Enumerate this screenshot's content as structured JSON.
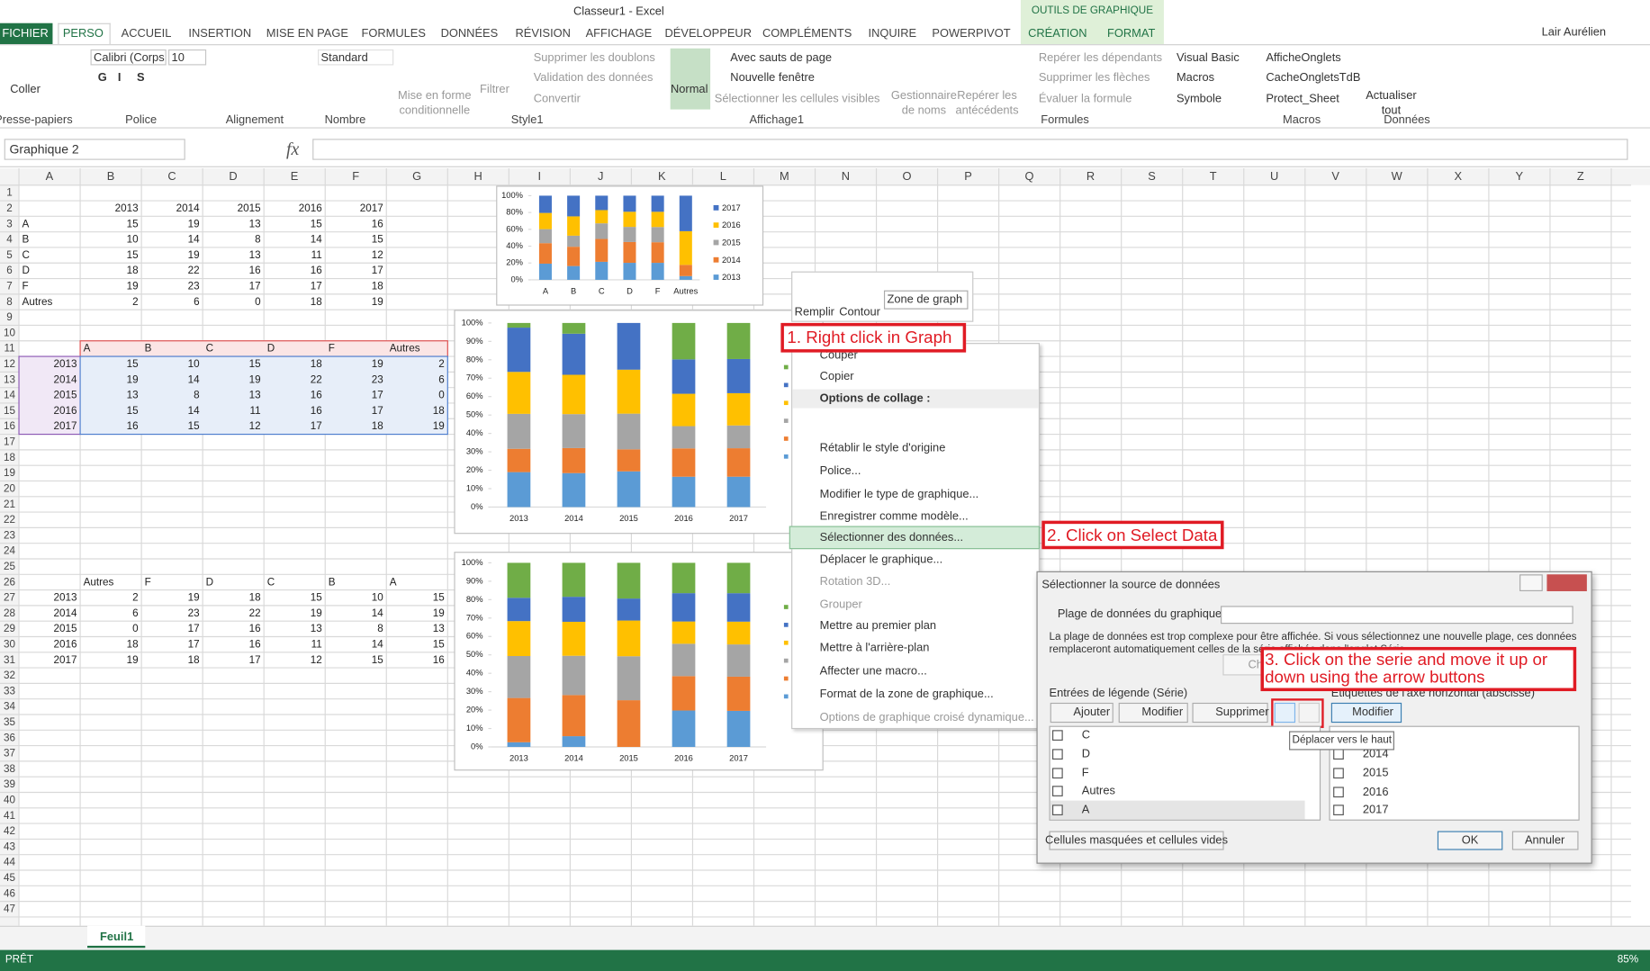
{
  "titlebar": {
    "title": "Classeur1 - Excel",
    "tools_tab": "OUTILS DE GRAPHIQUE",
    "user": "Lair Aurélien"
  },
  "tabs": [
    "FICHIER",
    "PERSO",
    "ACCUEIL",
    "INSERTION",
    "MISE EN PAGE",
    "FORMULES",
    "DONNÉES",
    "RÉVISION",
    "AFFICHAGE",
    "DÉVELOPPEUR",
    "COMPLÉMENTS",
    "INQUIRE",
    "POWERPIVOT",
    "CRÉATION",
    "FORMAT"
  ],
  "ribbon": {
    "groups": [
      {
        "name": "Presse-papiers",
        "items": [
          "Coller"
        ]
      },
      {
        "name": "Police",
        "items": [
          "Calibri (Corps",
          "10",
          "G",
          "I",
          "S"
        ]
      },
      {
        "name": "Alignement",
        "items": []
      },
      {
        "name": "Nombre",
        "items": [
          "Standard"
        ]
      },
      {
        "name": "Style1",
        "items": [
          "Mise en forme conditionnelle",
          "Filtrer",
          "Supprimer les doublons",
          "Validation des données",
          "Convertir"
        ]
      },
      {
        "name": "Affichage1",
        "items": [
          "Normal",
          "Avec sauts de page",
          "Nouvelle fenêtre",
          "Sélectionner les cellules visibles"
        ]
      },
      {
        "name": "Formules",
        "items": [
          "Gestionnaire de noms",
          "Repérer les antécédents",
          "Repérer les dépendants",
          "Supprimer les flèches",
          "Évaluer la formule"
        ]
      },
      {
        "name": "Macros",
        "items": [
          "Visual Basic",
          "Macros",
          "Symbole",
          "AfficheOnglets",
          "CacheOngletsTdB",
          "Protect_Sheet"
        ]
      },
      {
        "name": "Données",
        "items": [
          "Actualiser tout"
        ]
      }
    ]
  },
  "formula_bar": {
    "name_box": "Graphique 2",
    "fx": "fx"
  },
  "sheet": {
    "columns": [
      "A",
      "B",
      "C",
      "D",
      "E",
      "F",
      "G",
      "H",
      "I",
      "J",
      "K",
      "L",
      "M",
      "N",
      "O",
      "P",
      "Q",
      "R",
      "S",
      "T",
      "U",
      "V",
      "W",
      "X",
      "Y",
      "Z"
    ],
    "rows": [
      {
        "number": 1,
        "cells": []
      },
      {
        "number": 2,
        "cells": [
          null,
          2013,
          2014,
          2015,
          2016,
          2017
        ]
      },
      {
        "number": 3,
        "cells": [
          "A",
          15,
          19,
          13,
          15,
          16
        ]
      },
      {
        "number": 4,
        "cells": [
          "B",
          10,
          14,
          8,
          14,
          15
        ]
      },
      {
        "number": 5,
        "cells": [
          "C",
          15,
          19,
          13,
          11,
          12
        ]
      },
      {
        "number": 6,
        "cells": [
          "D",
          18,
          22,
          16,
          16,
          17
        ]
      },
      {
        "number": 7,
        "cells": [
          "F",
          19,
          23,
          17,
          17,
          18
        ]
      },
      {
        "number": 8,
        "cells": [
          "Autres",
          2,
          6,
          0,
          18,
          19
        ]
      },
      {
        "number": 9,
        "cells": []
      },
      {
        "number": 10,
        "cells": []
      },
      {
        "number": 11,
        "cells": [
          null,
          "A",
          "B",
          "C",
          "D",
          "F",
          "Autres"
        ]
      },
      {
        "number": 12,
        "cells": [
          2013,
          15,
          10,
          15,
          18,
          19,
          2
        ]
      },
      {
        "number": 13,
        "cells": [
          2014,
          19,
          14,
          19,
          22,
          23,
          6
        ]
      },
      {
        "number": 14,
        "cells": [
          2015,
          13,
          8,
          13,
          16,
          17,
          0
        ]
      },
      {
        "number": 15,
        "cells": [
          2016,
          15,
          14,
          11,
          16,
          17,
          18
        ]
      },
      {
        "number": 16,
        "cells": [
          2017,
          16,
          15,
          12,
          17,
          18,
          19
        ]
      },
      {
        "number": 17,
        "cells": []
      },
      {
        "number": 18,
        "cells": []
      },
      {
        "number": 19,
        "cells": []
      },
      {
        "number": 20,
        "cells": []
      },
      {
        "number": 21,
        "cells": []
      },
      {
        "number": 22,
        "cells": []
      },
      {
        "number": 23,
        "cells": []
      },
      {
        "number": 24,
        "cells": []
      },
      {
        "number": 25,
        "cells": []
      },
      {
        "number": 26,
        "cells": [
          null,
          "Autres",
          "F",
          "D",
          "C",
          "B",
          "A"
        ]
      },
      {
        "number": 27,
        "cells": [
          2013,
          2,
          19,
          18,
          15,
          10,
          15
        ]
      },
      {
        "number": 28,
        "cells": [
          2014,
          6,
          23,
          22,
          19,
          14,
          19
        ]
      },
      {
        "number": 29,
        "cells": [
          2015,
          0,
          17,
          16,
          13,
          8,
          13
        ]
      },
      {
        "number": 30,
        "cells": [
          2016,
          18,
          17,
          16,
          11,
          14,
          15
        ]
      },
      {
        "number": 31,
        "cells": [
          2017,
          19,
          18,
          17,
          12,
          15,
          16
        ]
      },
      {
        "number": 32,
        "cells": []
      },
      {
        "number": 33,
        "cells": []
      },
      {
        "number": 34,
        "cells": []
      },
      {
        "number": 35,
        "cells": []
      },
      {
        "number": 36,
        "cells": []
      },
      {
        "number": 37,
        "cells": []
      },
      {
        "number": 38,
        "cells": []
      },
      {
        "number": 39,
        "cells": []
      },
      {
        "number": 40,
        "cells": []
      },
      {
        "number": 41,
        "cells": []
      },
      {
        "number": 42,
        "cells": []
      },
      {
        "number": 43,
        "cells": []
      },
      {
        "number": 44,
        "cells": []
      },
      {
        "number": 45,
        "cells": []
      },
      {
        "number": 46,
        "cells": []
      },
      {
        "number": 47,
        "cells": []
      }
    ]
  },
  "charts": [
    {
      "type": "bar",
      "stacked": "percent",
      "categories": [
        "A",
        "B",
        "C",
        "D",
        "F",
        "Autres"
      ],
      "series": [
        {
          "name": "2013",
          "color": "#5b9bd5",
          "values": [
            15,
            10,
            15,
            18,
            19,
            2
          ]
        },
        {
          "name": "2014",
          "color": "#ed7d31",
          "values": [
            19,
            14,
            19,
            22,
            23,
            6
          ]
        },
        {
          "name": "2015",
          "color": "#a5a5a5",
          "values": [
            13,
            8,
            13,
            16,
            17,
            0
          ]
        },
        {
          "name": "2016",
          "color": "#ffc000",
          "values": [
            15,
            14,
            11,
            16,
            17,
            18
          ]
        },
        {
          "name": "2017",
          "color": "#4472c4",
          "values": [
            16,
            15,
            12,
            17,
            18,
            19
          ]
        }
      ],
      "ylim": [
        0,
        100
      ],
      "yticks": [
        {
          "value": 0,
          "label": "0%"
        },
        {
          "value": 20,
          "label": "20%"
        },
        {
          "value": 40,
          "label": "40%"
        },
        {
          "value": 60,
          "label": "60%"
        },
        {
          "value": 80,
          "label": "80%"
        },
        {
          "value": 100,
          "label": "100%"
        }
      ]
    },
    {
      "type": "bar",
      "stacked": "percent",
      "categories": [
        "2013",
        "2014",
        "2015",
        "2016",
        "2017"
      ],
      "series": [
        {
          "color": "#5b9bd5",
          "values": [
            15,
            19,
            13,
            15,
            16
          ]
        },
        {
          "color": "#ed7d31",
          "values": [
            10,
            14,
            8,
            14,
            15
          ]
        },
        {
          "color": "#a5a5a5",
          "values": [
            15,
            19,
            13,
            11,
            12
          ]
        },
        {
          "color": "#ffc000",
          "values": [
            18,
            22,
            16,
            16,
            17
          ]
        },
        {
          "color": "#4472c4",
          "values": [
            19,
            23,
            17,
            17,
            18
          ]
        },
        {
          "color": "#70ad47",
          "values": [
            2,
            6,
            0,
            18,
            19
          ]
        }
      ],
      "ylim": [
        0,
        100
      ],
      "yticks": [
        {
          "value": 0,
          "label": "0%"
        },
        {
          "value": 10,
          "label": "10%"
        },
        {
          "value": 20,
          "label": "20%"
        },
        {
          "value": 30,
          "label": "30%"
        },
        {
          "value": 40,
          "label": "40%"
        },
        {
          "value": 50,
          "label": "50%"
        },
        {
          "value": 60,
          "label": "60%"
        },
        {
          "value": 70,
          "label": "70%"
        },
        {
          "value": 80,
          "label": "80%"
        },
        {
          "value": 90,
          "label": "90%"
        },
        {
          "value": 100,
          "label": "100%"
        }
      ]
    },
    {
      "type": "bar",
      "stacked": "percent",
      "categories": [
        "2013",
        "2014",
        "2015",
        "2016",
        "2017"
      ],
      "series": [
        {
          "color": "#5b9bd5",
          "values": [
            2,
            6,
            0,
            18,
            19
          ]
        },
        {
          "color": "#ed7d31",
          "values": [
            19,
            23,
            17,
            17,
            18
          ]
        },
        {
          "color": "#a5a5a5",
          "values": [
            18,
            22,
            16,
            16,
            17
          ]
        },
        {
          "color": "#ffc000",
          "values": [
            15,
            19,
            13,
            11,
            12
          ]
        },
        {
          "color": "#4472c4",
          "values": [
            10,
            14,
            8,
            14,
            15
          ]
        },
        {
          "color": "#70ad47",
          "values": [
            15,
            19,
            13,
            15,
            16
          ]
        }
      ],
      "ylim": [
        0,
        100
      ],
      "yticks": [
        {
          "value": 0,
          "label": "0%"
        },
        {
          "value": 10,
          "label": "10%"
        },
        {
          "value": 20,
          "label": "20%"
        },
        {
          "value": 30,
          "label": "30%"
        },
        {
          "value": 40,
          "label": "40%"
        },
        {
          "value": 50,
          "label": "50%"
        },
        {
          "value": 60,
          "label": "60%"
        },
        {
          "value": 70,
          "label": "70%"
        },
        {
          "value": 80,
          "label": "80%"
        },
        {
          "value": 90,
          "label": "90%"
        },
        {
          "value": 100,
          "label": "100%"
        }
      ]
    }
  ],
  "mini_toolbar": {
    "fill": "Remplir",
    "outline": "Contour",
    "element": "Zone de graph"
  },
  "context_menu": {
    "items": [
      "Couper",
      "Copier",
      "Options de collage :",
      "Rétablir le style d'origine",
      "Police...",
      "Modifier le type de graphique...",
      "Enregistrer comme modèle...",
      "Sélectionner des données...",
      "Déplacer le graphique...",
      "Rotation 3D...",
      "Grouper",
      "Mettre au premier plan",
      "Mettre à l'arrière-plan",
      "Affecter une macro...",
      "Format de la zone de graphique...",
      "Options de graphique croisé dynamique..."
    ]
  },
  "dialog": {
    "title": "Sélectionner la source de données",
    "range_label": "Plage de données du graphique :",
    "message": "La plage de données est trop complexe pour être affichée. Si vous sélectionnez une nouvelle plage, ces données remplaceront automatiquement celles de la série affichée dans l'onglet Série.",
    "switch_button": "Ch",
    "legend_label": "Entrées de légende (Série)",
    "add": "Ajouter",
    "edit": "Modifier",
    "remove": "Supprimer",
    "series": [
      "C",
      "D",
      "F",
      "Autres",
      "A"
    ],
    "axis_label": "Étiquettes de l'axe horizontal (abscisse)",
    "axis_edit": "Modifier",
    "axis_items": [
      "2014",
      "2015",
      "2016",
      "2017"
    ],
    "tooltip": "Déplacer vers le haut",
    "hidden_cells": "Cellules masquées et cellules vides",
    "ok": "OK",
    "cancel": "Annuler"
  },
  "annotations": [
    "1. Right click in Graph",
    "2. Click on Select Data",
    "3. Click on the serie and move it up or down using the arrow buttons"
  ],
  "sheet_tab": "Feuil1",
  "status": {
    "ready": "PRÊT",
    "zoom": "85%"
  }
}
